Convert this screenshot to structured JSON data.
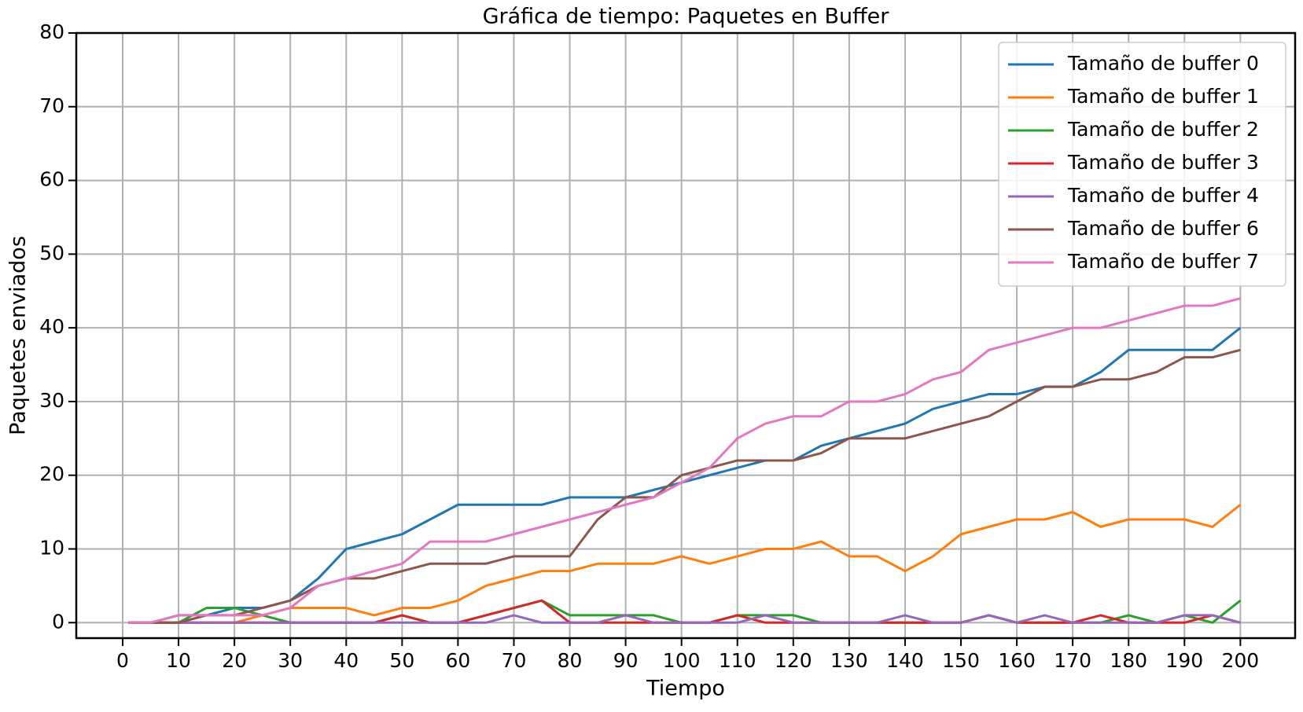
{
  "chart_data": {
    "type": "line",
    "title": "Gráfica de tiempo: Paquetes en Buffer",
    "x_label": "Tiempo",
    "y_label": "Paquetes enviados",
    "x": [
      1,
      5,
      10,
      15,
      20,
      25,
      30,
      35,
      40,
      45,
      50,
      55,
      60,
      65,
      70,
      75,
      80,
      85,
      90,
      95,
      100,
      105,
      110,
      115,
      120,
      125,
      130,
      135,
      140,
      145,
      150,
      155,
      160,
      165,
      170,
      175,
      180,
      185,
      190,
      195,
      200
    ],
    "series": [
      {
        "name": "Tamaño de buffer 0",
        "color": "#1f77b4",
        "values": [
          0,
          0,
          1,
          1,
          2,
          2,
          3,
          6,
          10,
          11,
          12,
          14,
          16,
          16,
          16,
          16,
          17,
          17,
          17,
          18,
          19,
          20,
          21,
          22,
          22,
          24,
          25,
          26,
          27,
          29,
          30,
          31,
          31,
          32,
          32,
          34,
          37,
          37,
          37,
          37,
          40
        ]
      },
      {
        "name": "Tamaño de buffer 1",
        "color": "#ff7f0e",
        "values": [
          0,
          0,
          0,
          0,
          0,
          1,
          2,
          2,
          2,
          1,
          2,
          2,
          3,
          5,
          6,
          7,
          7,
          8,
          8,
          8,
          9,
          8,
          9,
          10,
          10,
          11,
          9,
          9,
          7,
          9,
          12,
          13,
          14,
          14,
          15,
          13,
          14,
          14,
          14,
          13,
          16
        ]
      },
      {
        "name": "Tamaño de buffer 2",
        "color": "#2ca02c",
        "values": [
          0,
          0,
          0,
          2,
          2,
          1,
          0,
          0,
          0,
          0,
          1,
          0,
          0,
          1,
          2,
          3,
          1,
          1,
          1,
          1,
          0,
          0,
          1,
          1,
          1,
          0,
          0,
          0,
          0,
          0,
          0,
          1,
          0,
          0,
          0,
          0,
          1,
          0,
          1,
          0,
          3
        ]
      },
      {
        "name": "Tamaño de buffer 3",
        "color": "#d62728",
        "values": [
          0,
          0,
          0,
          0,
          0,
          0,
          0,
          0,
          0,
          0,
          1,
          0,
          0,
          1,
          2,
          3,
          0,
          0,
          0,
          0,
          0,
          0,
          1,
          0,
          0,
          0,
          0,
          0,
          0,
          0,
          0,
          1,
          0,
          0,
          0,
          1,
          0,
          0,
          0,
          1,
          0
        ]
      },
      {
        "name": "Tamaño de buffer 4",
        "color": "#9467bd",
        "values": [
          0,
          0,
          0,
          0,
          0,
          0,
          0,
          0,
          0,
          0,
          0,
          0,
          0,
          0,
          1,
          0,
          0,
          0,
          1,
          0,
          0,
          0,
          0,
          1,
          0,
          0,
          0,
          0,
          1,
          0,
          0,
          1,
          0,
          1,
          0,
          0,
          0,
          0,
          1,
          1,
          0
        ]
      },
      {
        "name": "Tamaño de buffer 6",
        "color": "#8c564b",
        "values": [
          0,
          0,
          0,
          1,
          1,
          2,
          3,
          5,
          6,
          6,
          7,
          8,
          8,
          8,
          9,
          9,
          9,
          14,
          17,
          17,
          20,
          21,
          22,
          22,
          22,
          23,
          25,
          25,
          25,
          26,
          27,
          28,
          30,
          32,
          32,
          33,
          33,
          34,
          36,
          36,
          37
        ]
      },
      {
        "name": "Tamaño de buffer 7",
        "color": "#e377c2",
        "values": [
          0,
          0,
          1,
          1,
          1,
          1,
          2,
          5,
          6,
          7,
          8,
          11,
          11,
          11,
          12,
          13,
          14,
          15,
          16,
          17,
          19,
          21,
          25,
          27,
          28,
          28,
          30,
          30,
          31,
          33,
          34,
          37,
          38,
          39,
          40,
          40,
          41,
          42,
          43,
          43,
          44
        ]
      }
    ],
    "xlim": [
      -8.3,
      209.8
    ],
    "ylim": [
      -2.1,
      80
    ],
    "xticks": [
      0,
      10,
      20,
      30,
      40,
      50,
      60,
      70,
      80,
      90,
      100,
      110,
      120,
      130,
      140,
      150,
      160,
      170,
      180,
      190,
      200
    ],
    "yticks": [
      0,
      10,
      20,
      30,
      40,
      50,
      60,
      70,
      80
    ],
    "grid": true,
    "legend": "upper right"
  }
}
